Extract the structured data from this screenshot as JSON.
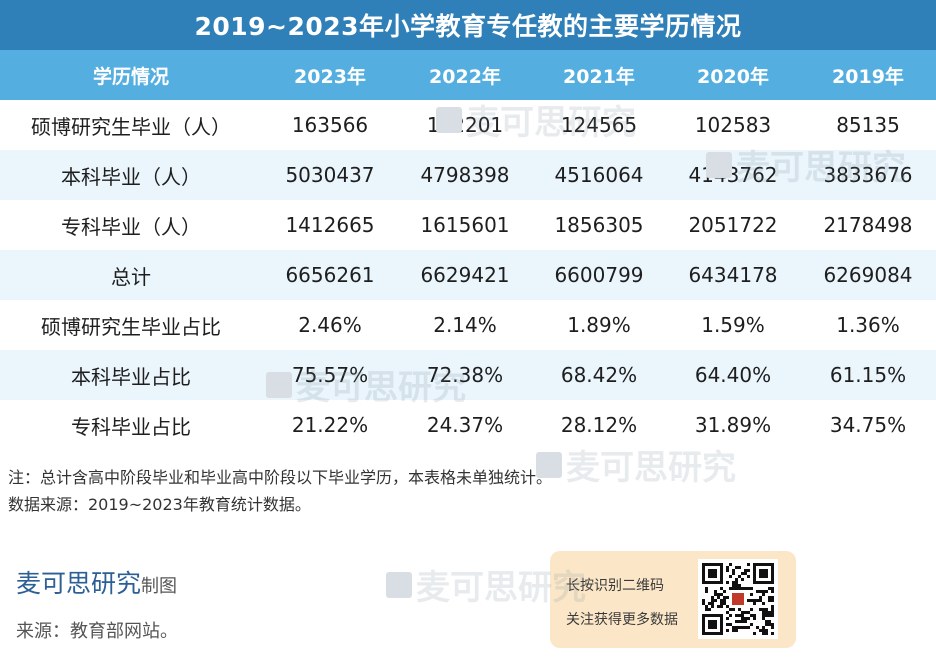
{
  "title": "2019~2023年小学教育专任教的主要学历情况",
  "chart_data": {
    "type": "table",
    "columns": [
      "学历情况",
      "2023年",
      "2022年",
      "2021年",
      "2020年",
      "2019年"
    ],
    "rows": [
      [
        "硕博研究生毕业（人）",
        "163566",
        "142201",
        "124565",
        "102583",
        "85135"
      ],
      [
        "本科毕业（人）",
        "5030437",
        "4798398",
        "4516064",
        "4143762",
        "3833676"
      ],
      [
        "专科毕业（人）",
        "1412665",
        "1615601",
        "1856305",
        "2051722",
        "2178498"
      ],
      [
        "总计",
        "6656261",
        "6629421",
        "6600799",
        "6434178",
        "6269084"
      ],
      [
        "硕博研究生毕业占比",
        "2.46%",
        "2.14%",
        "1.89%",
        "1.59%",
        "1.36%"
      ],
      [
        "本科毕业占比",
        "75.57%",
        "72.38%",
        "68.42%",
        "64.40%",
        "61.15%"
      ],
      [
        "专科毕业占比",
        "21.22%",
        "24.37%",
        "28.12%",
        "31.89%",
        "34.75%"
      ]
    ]
  },
  "notes": {
    "line1": "注：总计含高中阶段毕业和毕业高中阶段以下毕业学历，本表格未单独统计。",
    "line2": "数据来源：2019~2023年教育统计数据。"
  },
  "brand": {
    "name": "麦可思研究",
    "suffix": "制图"
  },
  "source": "来源：教育部网站。",
  "qr": {
    "line1": "长按识别二维码",
    "line2": "关注获得更多数据"
  },
  "watermark_text": "麦可思研究",
  "colors": {
    "title_bg": "#2f7fb8",
    "header_bg": "#55aee0",
    "stripe": "#eaf5fc",
    "qr_card_bg": "#fbe7c8"
  }
}
